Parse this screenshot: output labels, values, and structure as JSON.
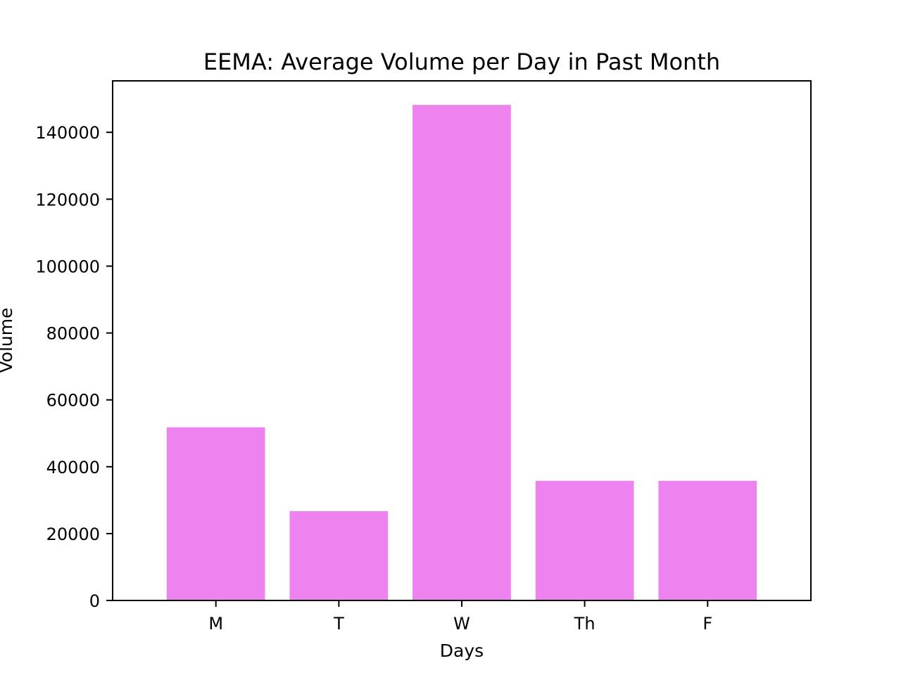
{
  "chart_data": {
    "type": "bar",
    "title": "EEMA: Average Volume per Day in Past Month",
    "xlabel": "Days",
    "ylabel": "Volume",
    "categories": [
      "M",
      "T",
      "W",
      "Th",
      "F"
    ],
    "values": [
      51800,
      26700,
      148200,
      35800,
      35800
    ],
    "ylim": [
      0,
      155400
    ],
    "yticks": [
      0,
      20000,
      40000,
      60000,
      80000,
      100000,
      120000,
      140000
    ],
    "ytick_labels": [
      "0",
      "20000",
      "40000",
      "60000",
      "80000",
      "100000",
      "120000",
      "140000"
    ],
    "bar_color": "#ee82ee",
    "grid": false,
    "legend": "none"
  }
}
